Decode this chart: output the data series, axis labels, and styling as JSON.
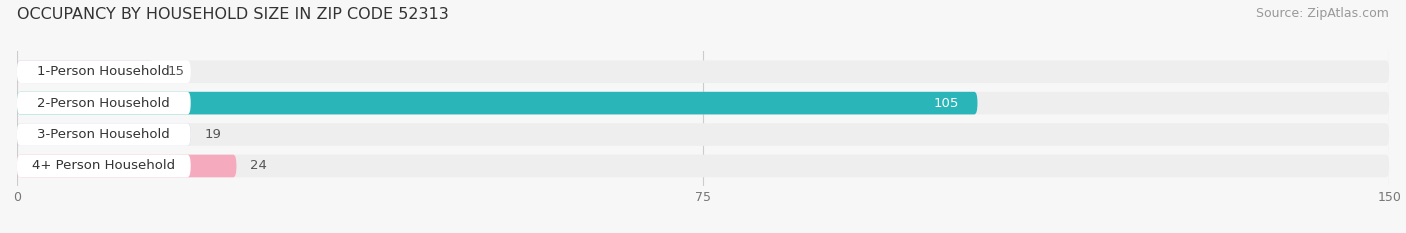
{
  "title": "OCCUPANCY BY HOUSEHOLD SIZE IN ZIP CODE 52313",
  "source": "Source: ZipAtlas.com",
  "categories": [
    "1-Person Household",
    "2-Person Household",
    "3-Person Household",
    "4+ Person Household"
  ],
  "values": [
    15,
    105,
    19,
    24
  ],
  "bar_colors": [
    "#caaacb",
    "#2ab5b8",
    "#b2b8e2",
    "#f5aabe"
  ],
  "value_colors": [
    "#555555",
    "#ffffff",
    "#555555",
    "#555555"
  ],
  "xlim": [
    0,
    150
  ],
  "xticks": [
    0,
    75,
    150
  ],
  "bar_height": 0.72,
  "title_fontsize": 11.5,
  "source_fontsize": 9,
  "label_fontsize": 9.5,
  "value_fontsize": 9.5,
  "tick_fontsize": 9,
  "background_color": "#f7f7f7",
  "pill_bg_color": "#eeeeee",
  "label_box_color": "#ffffff"
}
